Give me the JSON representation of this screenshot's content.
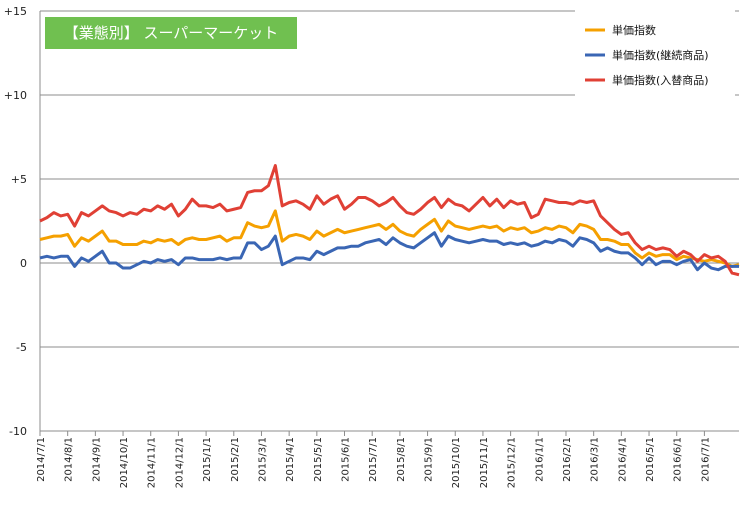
{
  "chart_data": {
    "type": "line",
    "title": "【業態別】 スーパーマーケット",
    "title_box_color": "#70C050",
    "ylim": [
      -10,
      15
    ],
    "y_ticks": [
      {
        "value": 15,
        "label": "+15"
      },
      {
        "value": 10,
        "label": "+10"
      },
      {
        "value": 5,
        "label": "+5"
      },
      {
        "value": 0,
        "label": "0"
      },
      {
        "value": -5,
        "label": "-5"
      },
      {
        "value": -10,
        "label": "-10"
      }
    ],
    "x_ticks": [
      {
        "index": 0,
        "label": "2014/7/1"
      },
      {
        "index": 4,
        "label": "2014/8/1"
      },
      {
        "index": 8,
        "label": "2014/9/1"
      },
      {
        "index": 12,
        "label": "2014/10/1"
      },
      {
        "index": 16,
        "label": "2014/11/1"
      },
      {
        "index": 20,
        "label": "2014/12/1"
      },
      {
        "index": 24,
        "label": "2015/1/1"
      },
      {
        "index": 28,
        "label": "2015/2/1"
      },
      {
        "index": 32,
        "label": "2015/3/1"
      },
      {
        "index": 36,
        "label": "2015/4/1"
      },
      {
        "index": 40,
        "label": "2015/5/1"
      },
      {
        "index": 44,
        "label": "2015/6/1"
      },
      {
        "index": 48,
        "label": "2015/7/1"
      },
      {
        "index": 52,
        "label": "2015/8/1"
      },
      {
        "index": 56,
        "label": "2015/9/1"
      },
      {
        "index": 60,
        "label": "2015/10/1"
      },
      {
        "index": 64,
        "label": "2015/11/1"
      },
      {
        "index": 68,
        "label": "2015/12/1"
      },
      {
        "index": 72,
        "label": "2016/1/1"
      },
      {
        "index": 76,
        "label": "2016/2/1"
      },
      {
        "index": 80,
        "label": "2016/3/1"
      },
      {
        "index": 84,
        "label": "2016/4/1"
      },
      {
        "index": 88,
        "label": "2016/5/1"
      },
      {
        "index": 92,
        "label": "2016/6/1"
      },
      {
        "index": 96,
        "label": "2016/7/1"
      }
    ],
    "grid": true,
    "legend_position": "top-right",
    "series": [
      {
        "name": "単価指数",
        "color": "#F5A000",
        "values": [
          1.4,
          1.5,
          1.6,
          1.6,
          1.7,
          1.0,
          1.5,
          1.3,
          1.6,
          1.9,
          1.3,
          1.3,
          1.1,
          1.1,
          1.1,
          1.3,
          1.2,
          1.4,
          1.3,
          1.4,
          1.1,
          1.4,
          1.5,
          1.4,
          1.4,
          1.5,
          1.6,
          1.3,
          1.5,
          1.5,
          2.4,
          2.2,
          2.1,
          2.2,
          3.1,
          1.3,
          1.6,
          1.7,
          1.6,
          1.4,
          1.9,
          1.6,
          1.8,
          2.0,
          1.8,
          1.9,
          2.0,
          2.1,
          2.2,
          2.3,
          2.0,
          2.3,
          1.9,
          1.7,
          1.6,
          2.0,
          2.3,
          2.6,
          1.9,
          2.5,
          2.2,
          2.1,
          2.0,
          2.1,
          2.2,
          2.1,
          2.2,
          1.9,
          2.1,
          2.0,
          2.1,
          1.8,
          1.9,
          2.1,
          2.0,
          2.2,
          2.1,
          1.8,
          2.3,
          2.2,
          2.0,
          1.4,
          1.4,
          1.3,
          1.1,
          1.1,
          0.6,
          0.3,
          0.6,
          0.4,
          0.5,
          0.5,
          0.2,
          0.4,
          0.3,
          0.2,
          0.1,
          0.2,
          0.1,
          0.0,
          -0.2,
          -0.1
        ]
      },
      {
        "name": "単価指数(継続商品)",
        "color": "#3A66B4",
        "values": [
          0.3,
          0.4,
          0.3,
          0.4,
          0.4,
          -0.2,
          0.3,
          0.1,
          0.4,
          0.7,
          0.0,
          0.0,
          -0.3,
          -0.3,
          -0.1,
          0.1,
          0.0,
          0.2,
          0.1,
          0.2,
          -0.1,
          0.3,
          0.3,
          0.2,
          0.2,
          0.2,
          0.3,
          0.2,
          0.3,
          0.3,
          1.2,
          1.2,
          0.8,
          1.0,
          1.6,
          -0.1,
          0.1,
          0.3,
          0.3,
          0.2,
          0.7,
          0.5,
          0.7,
          0.9,
          0.9,
          1.0,
          1.0,
          1.2,
          1.3,
          1.4,
          1.1,
          1.5,
          1.2,
          1.0,
          0.9,
          1.2,
          1.5,
          1.8,
          1.0,
          1.6,
          1.4,
          1.3,
          1.2,
          1.3,
          1.4,
          1.3,
          1.3,
          1.1,
          1.2,
          1.1,
          1.2,
          1.0,
          1.1,
          1.3,
          1.2,
          1.4,
          1.3,
          1.0,
          1.5,
          1.4,
          1.2,
          0.7,
          0.9,
          0.7,
          0.6,
          0.6,
          0.3,
          -0.1,
          0.3,
          -0.1,
          0.1,
          0.1,
          -0.1,
          0.1,
          0.2,
          -0.4,
          0.0,
          -0.3,
          -0.4,
          -0.2,
          -0.2,
          -0.2
        ]
      },
      {
        "name": "単価指数(入替商品)",
        "color": "#E04035",
        "values": [
          2.5,
          2.7,
          3.0,
          2.8,
          2.9,
          2.2,
          3.0,
          2.8,
          3.1,
          3.4,
          3.1,
          3.0,
          2.8,
          3.0,
          2.9,
          3.2,
          3.1,
          3.4,
          3.2,
          3.5,
          2.8,
          3.2,
          3.8,
          3.4,
          3.4,
          3.3,
          3.5,
          3.1,
          3.2,
          3.3,
          4.2,
          4.3,
          4.3,
          4.6,
          5.8,
          3.4,
          3.6,
          3.7,
          3.5,
          3.2,
          4.0,
          3.5,
          3.8,
          4.0,
          3.2,
          3.5,
          3.9,
          3.9,
          3.7,
          3.4,
          3.6,
          3.9,
          3.4,
          3.0,
          2.9,
          3.2,
          3.6,
          3.9,
          3.3,
          3.8,
          3.5,
          3.4,
          3.1,
          3.5,
          3.9,
          3.4,
          3.8,
          3.3,
          3.7,
          3.5,
          3.6,
          2.7,
          2.9,
          3.8,
          3.7,
          3.6,
          3.6,
          3.5,
          3.7,
          3.6,
          3.7,
          2.8,
          2.4,
          2.0,
          1.7,
          1.8,
          1.2,
          0.8,
          1.0,
          0.8,
          0.9,
          0.8,
          0.4,
          0.7,
          0.5,
          0.1,
          0.5,
          0.3,
          0.4,
          0.1,
          -0.6,
          -0.7
        ]
      }
    ]
  }
}
